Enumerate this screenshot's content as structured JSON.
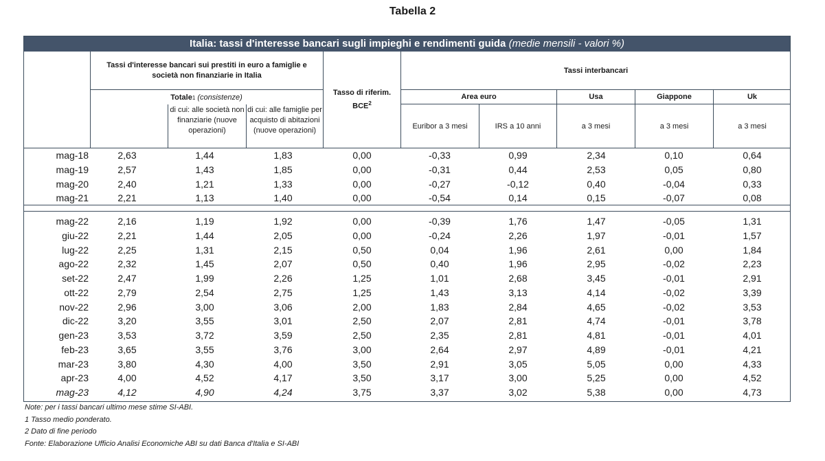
{
  "caption": "Tabella 2",
  "title": {
    "main": "Italia: tassi d'interesse bancari sugli impieghi e rendimenti guida",
    "suffix": "(medie mensili - valori %)"
  },
  "headers": {
    "group_prestiti": "Tassi d'interesse bancari sui prestiti in euro a famiglie e società non finanziarie in Italia",
    "totale": "Totale",
    "totale_sup": "1",
    "totale_note": "(consistenze)",
    "societa": "di cui: alle società non finanziarie (nuove operazioni)",
    "famiglie": "di cui: alle famiglie per acquisto di abitazioni (nuove operazioni)",
    "bce": "Tasso di riferim. BCE",
    "bce_sup": "2",
    "interbancari": "Tassi interbancari",
    "area_euro": "Area euro",
    "usa": "Usa",
    "giappone": "Giappone",
    "uk": "Uk",
    "euribor": "Euribor a 3 mesi",
    "irs": "IRS a 10 anni",
    "usa_sub": "a 3 mesi",
    "giappone_sub": "a 3 mesi",
    "uk_sub": "a 3 mesi"
  },
  "rows_block1": [
    {
      "label": "mag-18",
      "values": [
        "2,63",
        "1,44",
        "1,83",
        "0,00",
        "-0,33",
        "0,99",
        "2,34",
        "0,10",
        "0,64"
      ]
    },
    {
      "label": "mag-19",
      "values": [
        "2,57",
        "1,43",
        "1,85",
        "0,00",
        "-0,31",
        "0,44",
        "2,53",
        "0,05",
        "0,80"
      ]
    },
    {
      "label": "mag-20",
      "values": [
        "2,40",
        "1,21",
        "1,33",
        "0,00",
        "-0,27",
        "-0,12",
        "0,40",
        "-0,04",
        "0,33"
      ]
    },
    {
      "label": "mag-21",
      "values": [
        "2,21",
        "1,13",
        "1,40",
        "0,00",
        "-0,54",
        "0,14",
        "0,15",
        "-0,07",
        "0,08"
      ]
    }
  ],
  "rows_block2": [
    {
      "label": "mag-22",
      "values": [
        "2,16",
        "1,19",
        "1,92",
        "0,00",
        "-0,39",
        "1,76",
        "1,47",
        "-0,05",
        "1,31"
      ]
    },
    {
      "label": "giu-22",
      "values": [
        "2,21",
        "1,44",
        "2,05",
        "0,00",
        "-0,24",
        "2,26",
        "1,97",
        "-0,01",
        "1,57"
      ]
    },
    {
      "label": "lug-22",
      "values": [
        "2,25",
        "1,31",
        "2,15",
        "0,50",
        "0,04",
        "1,96",
        "2,61",
        "0,00",
        "1,84"
      ]
    },
    {
      "label": "ago-22",
      "values": [
        "2,32",
        "1,45",
        "2,07",
        "0,50",
        "0,40",
        "1,96",
        "2,95",
        "-0,02",
        "2,23"
      ]
    },
    {
      "label": "set-22",
      "values": [
        "2,47",
        "1,99",
        "2,26",
        "1,25",
        "1,01",
        "2,68",
        "3,45",
        "-0,01",
        "2,91"
      ]
    },
    {
      "label": "ott-22",
      "values": [
        "2,79",
        "2,54",
        "2,75",
        "1,25",
        "1,43",
        "3,13",
        "4,14",
        "-0,02",
        "3,39"
      ]
    },
    {
      "label": "nov-22",
      "values": [
        "2,96",
        "3,00",
        "3,06",
        "2,00",
        "1,83",
        "2,84",
        "4,65",
        "-0,02",
        "3,53"
      ]
    },
    {
      "label": "dic-22",
      "values": [
        "3,20",
        "3,55",
        "3,01",
        "2,50",
        "2,07",
        "2,81",
        "4,74",
        "-0,01",
        "3,78"
      ]
    },
    {
      "label": "gen-23",
      "values": [
        "3,53",
        "3,72",
        "3,59",
        "2,50",
        "2,35",
        "2,81",
        "4,81",
        "-0,01",
        "4,01"
      ]
    },
    {
      "label": "feb-23",
      "values": [
        "3,65",
        "3,55",
        "3,76",
        "3,00",
        "2,64",
        "2,97",
        "4,89",
        "-0,01",
        "4,21"
      ]
    },
    {
      "label": "mar-23",
      "values": [
        "3,80",
        "4,30",
        "4,00",
        "3,50",
        "2,91",
        "3,05",
        "5,05",
        "0,00",
        "4,33"
      ]
    },
    {
      "label": "apr-23",
      "values": [
        "4,00",
        "4,52",
        "4,17",
        "3,50",
        "3,17",
        "3,00",
        "5,25",
        "0,00",
        "4,52"
      ]
    },
    {
      "label": "mag-23",
      "values": [
        "4,12",
        "4,90",
        "4,24",
        "3,75",
        "3,37",
        "3,02",
        "5,38",
        "0,00",
        "4,73"
      ]
    }
  ],
  "notes": [
    "Note: per i tassi bancari ultimo mese stime SI-ABI.",
    "1 Tasso medio ponderato.",
    "2 Dato di fine periodo",
    "Fonte: Elaborazione Ufficio Analisi Economiche ABI su dati Banca d'Italia e SI-ABI"
  ]
}
